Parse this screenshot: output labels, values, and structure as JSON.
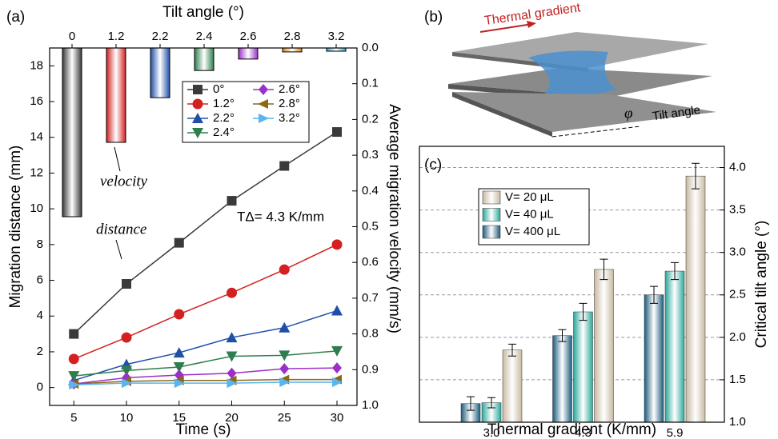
{
  "chart_data": [
    {
      "type": "line",
      "panel_label": "(a)",
      "x_label": "Time (s)",
      "y_label": "Migration distance (mm)",
      "y2_label": "Average migration velocity (mm/s)",
      "x": [
        5,
        10,
        15,
        20,
        25,
        30
      ],
      "xlim": [
        2.7,
        31.9
      ],
      "xticks": [
        5,
        10,
        15,
        20,
        25,
        30
      ],
      "ylim": [
        -1,
        19
      ],
      "yticks": [
        0,
        2,
        4,
        6,
        8,
        10,
        12,
        14,
        16,
        18
      ],
      "y2lim": [
        1.0,
        0.0
      ],
      "y2ticks": [
        {
          "value": 0,
          "label": "0.0"
        },
        {
          "value": 0.1,
          "label": "0.1"
        },
        {
          "value": 0.2,
          "label": "0.2"
        },
        {
          "value": 0.3,
          "label": "0.3"
        },
        {
          "value": 0.4,
          "label": "0.4"
        },
        {
          "value": 0.5,
          "label": "0.5"
        },
        {
          "value": 0.6,
          "label": "0.6"
        },
        {
          "value": 0.7,
          "label": "0.7"
        },
        {
          "value": 0.8,
          "label": "0.8"
        },
        {
          "value": 0.9,
          "label": "0.9"
        },
        {
          "value": 1,
          "label": "1.0"
        }
      ],
      "series": [
        {
          "name": "0°",
          "color": "#3a3a3a",
          "marker": "square",
          "values": [
            3.0,
            5.8,
            8.1,
            10.45,
            12.4,
            14.3
          ]
        },
        {
          "name": "1.2°",
          "color": "#d42020",
          "marker": "circle",
          "values": [
            1.6,
            2.8,
            4.1,
            5.3,
            6.6,
            8.0
          ]
        },
        {
          "name": "2.2°",
          "color": "#1f4fa8",
          "marker": "up",
          "values": [
            0.4,
            1.3,
            1.95,
            2.8,
            3.35,
            4.3
          ]
        },
        {
          "name": "2.4°",
          "color": "#2e7d4f",
          "marker": "down",
          "values": [
            0.65,
            0.95,
            1.15,
            1.75,
            1.8,
            2.05
          ]
        },
        {
          "name": "2.6°",
          "color": "#9b30c8",
          "marker": "diamond",
          "values": [
            0.2,
            0.55,
            0.7,
            0.8,
            1.05,
            1.1
          ]
        },
        {
          "name": "2.8°",
          "color": "#8b6914",
          "marker": "left",
          "values": [
            0.2,
            0.35,
            0.4,
            0.4,
            0.45,
            0.45
          ]
        },
        {
          "name": "3.2°",
          "color": "#5ab4ef",
          "marker": "right",
          "values": [
            0.15,
            0.25,
            0.25,
            0.25,
            0.3,
            0.3
          ]
        }
      ],
      "bars": {
        "axis": "y2",
        "axis_label": "Tilt angle (°)",
        "categories": [
          "0",
          "1.2",
          "2.2",
          "2.4",
          "2.6",
          "2.8",
          "3.2"
        ],
        "values": [
          0.472,
          0.264,
          0.139,
          0.063,
          0.031,
          0.011,
          0.009
        ],
        "colors": [
          "#3a3a3a",
          "#d42020",
          "#1f4fa8",
          "#2e7d4f",
          "#9b30c8",
          "#d98a10",
          "#3aa8c8"
        ]
      },
      "annotations": [
        "velocity",
        "distance",
        "TΔ= 4.3 K/mm"
      ]
    },
    {
      "type": "bar",
      "panel_label": "(c)",
      "x_label": "Thermal gradient (K/mm)",
      "y_label": "Critical tilt angle (°)",
      "categories": [
        "3.0",
        "4.3",
        "5.9"
      ],
      "ylim": [
        1.0,
        4.25
      ],
      "yticks": [
        {
          "value": 1,
          "label": "1.0"
        },
        {
          "value": 1.5,
          "label": "1.5"
        },
        {
          "value": 2,
          "label": "2.0"
        },
        {
          "value": 2.5,
          "label": "2.5"
        },
        {
          "value": 3,
          "label": "3.0"
        },
        {
          "value": 3.5,
          "label": "3.5"
        },
        {
          "value": 4,
          "label": "4.0"
        }
      ],
      "grid": true,
      "series": [
        {
          "name": "V=  20 μL",
          "color": "#c8b9a0",
          "values": [
            1.85,
            2.8,
            3.9
          ],
          "errors": [
            0.07,
            0.12,
            0.15
          ]
        },
        {
          "name": "V=  40 μL",
          "color": "#2aa89a",
          "values": [
            1.23,
            2.3,
            2.78
          ],
          "errors": [
            0.06,
            0.1,
            0.1
          ]
        },
        {
          "name": "V= 400 μL",
          "color": "#1a5a7a",
          "values": [
            1.22,
            2.02,
            2.5
          ],
          "errors": [
            0.08,
            0.07,
            0.1
          ]
        }
      ]
    }
  ],
  "diagram_b": {
    "panel_label": "(b)",
    "arrow_label": "Thermal gradient",
    "angle_symbol": "φ",
    "angle_label": "Tilt angle"
  }
}
